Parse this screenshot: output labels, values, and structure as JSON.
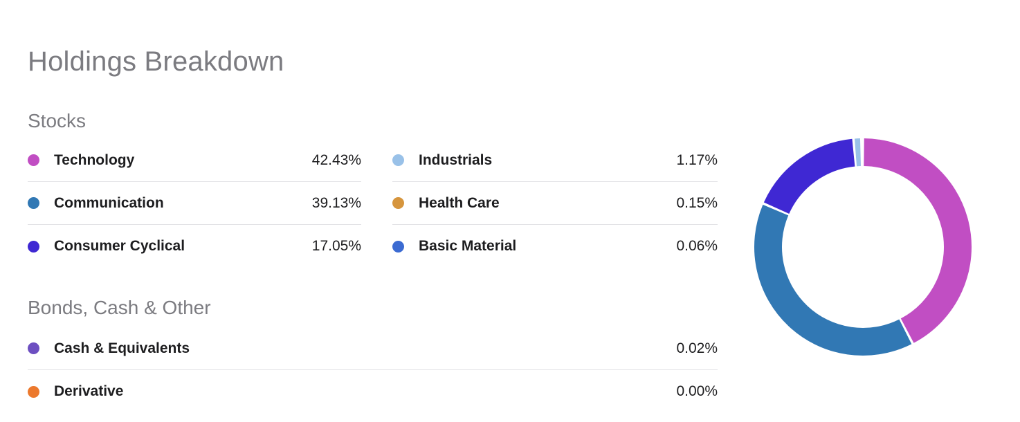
{
  "header": {
    "title": "Holdings Breakdown"
  },
  "sections": [
    {
      "heading": "Stocks",
      "items": [
        {
          "label": "Technology",
          "value_text": "42.43%",
          "color": "#c14ec3"
        },
        {
          "label": "Communication",
          "value_text": "39.13%",
          "color": "#3178b4"
        },
        {
          "label": "Consumer Cyclical",
          "value_text": "17.05%",
          "color": "#3f28d3"
        },
        {
          "label": "Industrials",
          "value_text": "1.17%",
          "color": "#99c1e8"
        },
        {
          "label": "Health Care",
          "value_text": "0.15%",
          "color": "#d6953d"
        },
        {
          "label": "Basic Material",
          "value_text": "0.06%",
          "color": "#3b6bd2"
        }
      ]
    },
    {
      "heading": "Bonds, Cash & Other",
      "items": [
        {
          "label": "Cash & Equivalents",
          "value_text": "0.02%",
          "color": "#6d4fc1"
        },
        {
          "label": "Derivative",
          "value_text": "0.00%",
          "color": "#ec792d"
        }
      ]
    }
  ],
  "chart_data": {
    "type": "pie",
    "subtype": "donut",
    "title": "Holdings Breakdown",
    "start_angle_deg": 0,
    "direction": "clockwise",
    "legend_position": "left",
    "segments": [
      {
        "label": "Technology",
        "value": 42.43,
        "color": "#c14ec3"
      },
      {
        "label": "Communication",
        "value": 39.13,
        "color": "#3178b4"
      },
      {
        "label": "Consumer Cyclical",
        "value": 17.05,
        "color": "#3f28d3"
      },
      {
        "label": "Industrials",
        "value": 1.17,
        "color": "#99c1e8"
      },
      {
        "label": "Health Care",
        "value": 0.15,
        "color": "#d6953d"
      },
      {
        "label": "Basic Material",
        "value": 0.06,
        "color": "#3b6bd2"
      },
      {
        "label": "Cash & Equivalents",
        "value": 0.02,
        "color": "#6d4fc1"
      },
      {
        "label": "Derivative",
        "value": 0.0,
        "color": "#ec792d"
      }
    ]
  }
}
